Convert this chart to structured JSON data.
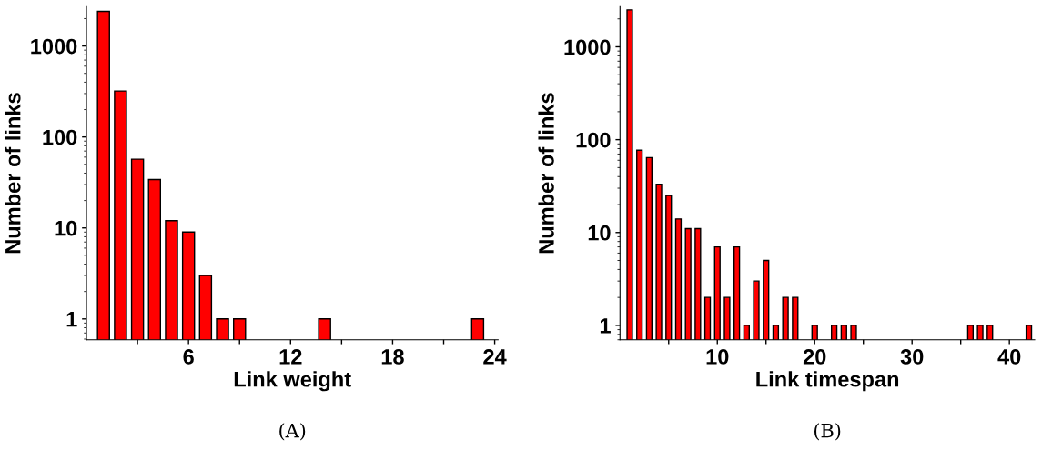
{
  "chart_data": [
    {
      "type": "bar",
      "xlabel": "Link weight",
      "ylabel": "Number of links",
      "annotations": [
        "(A)"
      ],
      "log": true,
      "grid": false,
      "legend": false,
      "x": [
        1,
        2,
        3,
        4,
        5,
        6,
        7,
        8,
        9,
        14,
        23
      ],
      "series": [
        {
          "color": "#ff0000",
          "values": [
            2400,
            320,
            57,
            34,
            12,
            9,
            3,
            1,
            1,
            1,
            1
          ]
        }
      ],
      "xlim": [
        0,
        24.2
      ],
      "xticks": [
        {
          "value": 3,
          "label": null
        },
        6,
        {
          "value": 9,
          "label": null
        },
        12,
        {
          "value": 15,
          "label": null
        },
        18,
        {
          "value": 21,
          "label": null
        },
        24
      ],
      "ylim": [
        0.59,
        2700
      ],
      "yticks": [
        1,
        10,
        100,
        1000
      ]
    },
    {
      "type": "bar",
      "xlabel": "Link timespan",
      "ylabel": "Number of links",
      "annotations": [
        "(B)"
      ],
      "log": true,
      "grid": false,
      "legend": false,
      "x": [
        1,
        2,
        3,
        4,
        5,
        6,
        7,
        8,
        9,
        10,
        11,
        12,
        13,
        14,
        15,
        16,
        17,
        18,
        20,
        22,
        23,
        24,
        36,
        37,
        38,
        42
      ],
      "series": [
        {
          "color": "#ff0000",
          "values": [
            2500,
            77,
            64,
            33,
            25,
            14,
            11,
            11,
            2,
            7,
            2,
            7,
            1,
            3,
            5,
            1,
            2,
            2,
            1,
            1,
            1,
            1,
            1,
            1,
            1,
            1
          ]
        }
      ],
      "xlim": [
        0,
        42.6
      ],
      "xticks": [
        {
          "value": 5,
          "label": null
        },
        10,
        {
          "value": 15,
          "label": null
        },
        20,
        {
          "value": 25,
          "label": null
        },
        30,
        {
          "value": 35,
          "label": null
        },
        40
      ],
      "ylim": [
        0.7,
        2700
      ],
      "yticks": [
        1,
        10,
        100,
        1000
      ]
    }
  ]
}
